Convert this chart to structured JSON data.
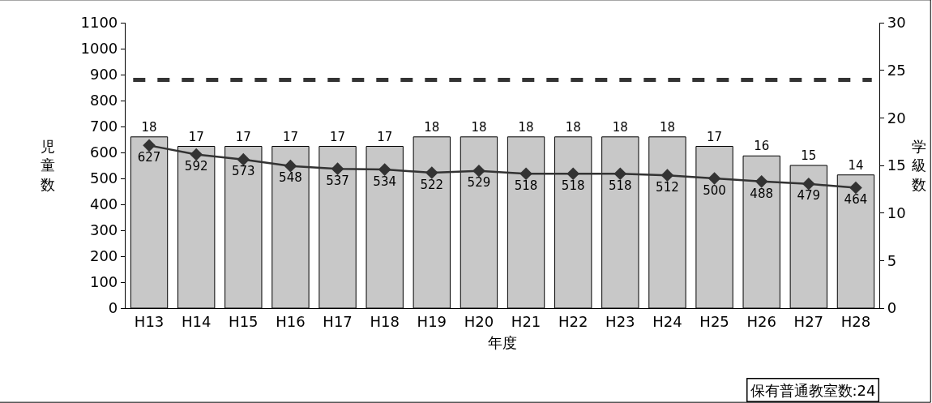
{
  "chart_data": {
    "type": "bar",
    "xlabel": "年度",
    "ylabel": "児童数",
    "y2label": "学級数",
    "categories": [
      "H13",
      "H14",
      "H15",
      "H16",
      "H17",
      "H18",
      "H19",
      "H20",
      "H21",
      "H22",
      "H23",
      "H24",
      "H25",
      "H26",
      "H27",
      "H28"
    ],
    "series": [
      {
        "axis": "y2",
        "color": "#c8c8c8",
        "values": [
          18,
          17,
          17,
          17,
          17,
          17,
          18,
          18,
          18,
          18,
          18,
          18,
          17,
          16,
          15,
          14
        ]
      },
      {
        "type": "line",
        "color": "#333333",
        "values": [
          627,
          592,
          573,
          548,
          537,
          534,
          522,
          529,
          518,
          518,
          518,
          512,
          500,
          488,
          479,
          464
        ]
      }
    ],
    "ylim": [
      0,
      1100
    ],
    "yticks": [
      0,
      100,
      200,
      300,
      400,
      500,
      600,
      700,
      800,
      900,
      1000,
      1100
    ],
    "y2lim": [
      0,
      30
    ],
    "y2ticks": [
      0,
      5,
      10,
      15,
      20,
      25,
      30
    ],
    "ref_lines": [
      {
        "axis": "y2",
        "value": 24,
        "color": "#333333",
        "line_style": "dashed"
      }
    ],
    "annotations": [
      "保有普通教室数:24"
    ],
    "data_labels": true,
    "marker": "diamond"
  }
}
